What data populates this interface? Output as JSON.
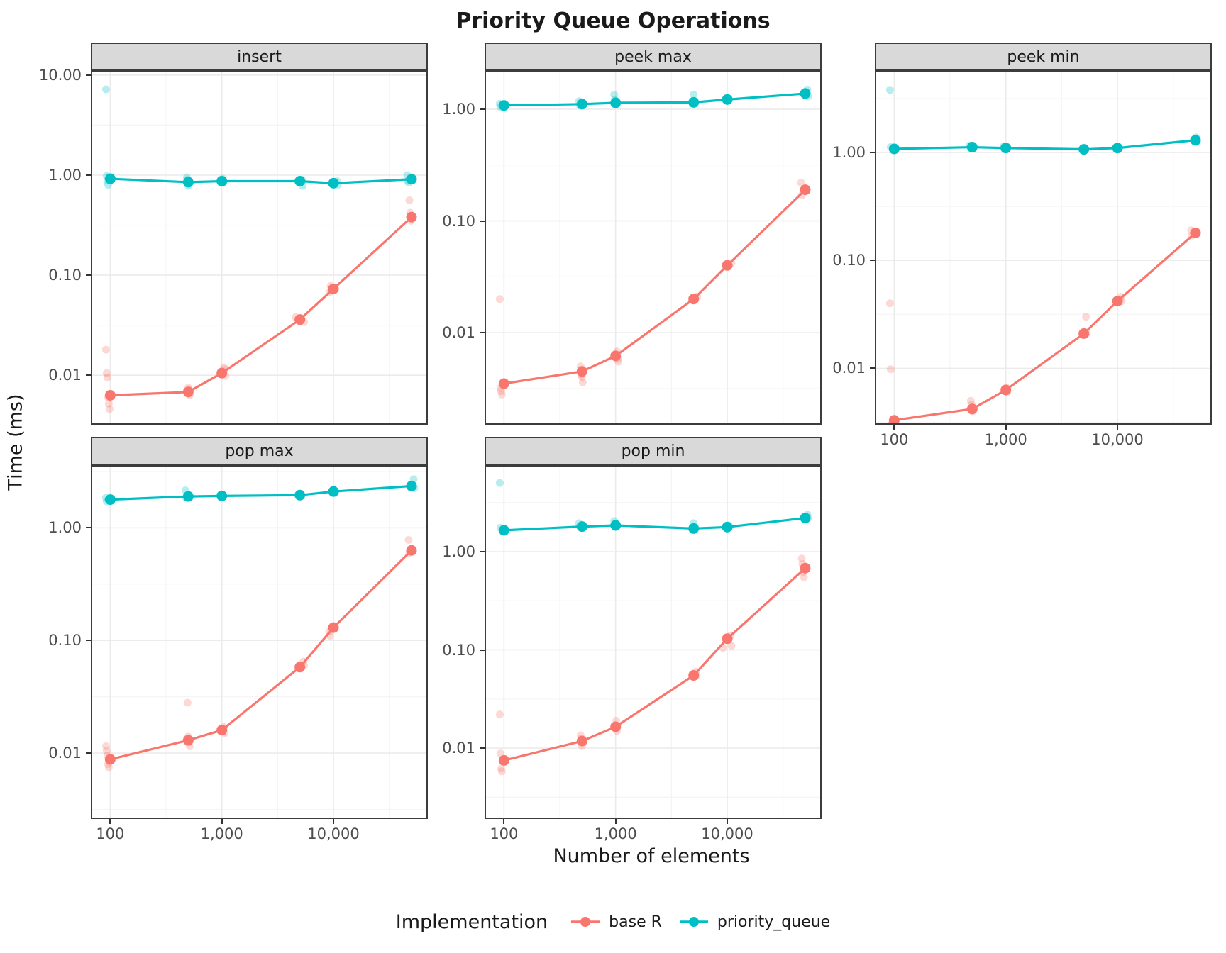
{
  "page": {
    "title": "Priority Queue Operations"
  },
  "colors": {
    "base_r": "#F8766D",
    "priority_queue": "#00BFC4",
    "panel_bg": "#FFFFFF",
    "strip_bg": "#D9D9D9",
    "panel_border": "#3C3C3C",
    "grid_major": "#EBEBEB",
    "grid_minor": "#F5F5F5",
    "tick_text": "#4D4D4D",
    "title_text": "#1A1A1A"
  },
  "chart_data": {
    "type": "line",
    "title": "Priority Queue Operations",
    "xlabel": "Number of elements",
    "ylabel": "Time (ms)",
    "x_scale": "log10",
    "y_scale": "log10",
    "grid": "on",
    "x": [
      100,
      500,
      1000,
      5000,
      10000,
      50000
    ],
    "xlim": [
      67,
      70000
    ],
    "x_ticks": {
      "values": [
        100,
        1000,
        10000
      ],
      "labels": [
        "100",
        "1,000",
        "10,000"
      ]
    },
    "x_minor": [
      316,
      3162,
      31623
    ],
    "legend": {
      "title": "Implementation",
      "position": "bottom",
      "entries": [
        {
          "label": "base R",
          "color": "#F8766D"
        },
        {
          "label": "priority_queue",
          "color": "#00BFC4"
        }
      ]
    },
    "facets": [
      {
        "label": "insert",
        "ylim": [
          0.0032,
          11.0
        ],
        "yticks": [
          0.01,
          0.1,
          1.0,
          10.0
        ],
        "ytick_labels": [
          "0.01",
          "0.10",
          "1.00",
          "10.00"
        ],
        "series": [
          {
            "name": "base R",
            "means": [
              0.0063,
              0.0068,
              0.0105,
              0.036,
              0.073,
              0.38
            ],
            "scatter": [
              [
                100,
                0.018
              ],
              [
                100,
                0.0105
              ],
              [
                100,
                0.0095
              ],
              [
                100,
                0.006
              ],
              [
                100,
                0.0052
              ],
              [
                100,
                0.0046
              ],
              [
                500,
                0.0075
              ],
              [
                500,
                0.0072
              ],
              [
                500,
                0.0063
              ],
              [
                1000,
                0.012
              ],
              [
                1000,
                0.0115
              ],
              [
                1000,
                0.0098
              ],
              [
                5000,
                0.034
              ],
              [
                5000,
                0.038
              ],
              [
                10000,
                0.068
              ],
              [
                10000,
                0.078
              ],
              [
                50000,
                0.56
              ],
              [
                50000,
                0.42
              ],
              [
                50000,
                0.35
              ]
            ]
          },
          {
            "name": "priority_queue",
            "means": [
              0.92,
              0.85,
              0.87,
              0.87,
              0.83,
              0.91
            ],
            "scatter": [
              [
                100,
                7.2
              ],
              [
                100,
                0.98
              ],
              [
                100,
                0.88
              ],
              [
                100,
                0.8
              ],
              [
                500,
                0.95
              ],
              [
                500,
                0.9
              ],
              [
                500,
                0.78
              ],
              [
                1000,
                0.92
              ],
              [
                1000,
                0.84
              ],
              [
                5000,
                0.9
              ],
              [
                5000,
                0.78
              ],
              [
                10000,
                0.87
              ],
              [
                10000,
                0.8
              ],
              [
                50000,
                1.0
              ],
              [
                50000,
                0.88
              ],
              [
                50000,
                0.84
              ]
            ]
          }
        ]
      },
      {
        "label": "peek max",
        "ylim": [
          0.0015,
          2.2
        ],
        "yticks": [
          0.01,
          0.1,
          1.0
        ],
        "ytick_labels": [
          "0.01",
          "0.10",
          "1.00"
        ],
        "series": [
          {
            "name": "base R",
            "means": [
              0.0035,
              0.0045,
              0.0062,
              0.02,
              0.04,
              0.19
            ],
            "scatter": [
              [
                100,
                0.02
              ],
              [
                100,
                0.0032
              ],
              [
                100,
                0.003
              ],
              [
                100,
                0.0028
              ],
              [
                500,
                0.005
              ],
              [
                500,
                0.0042
              ],
              [
                500,
                0.004
              ],
              [
                500,
                0.0036
              ],
              [
                1000,
                0.0068
              ],
              [
                1000,
                0.0058
              ],
              [
                1000,
                0.0055
              ],
              [
                5000,
                0.021
              ],
              [
                10000,
                0.042
              ],
              [
                50000,
                0.22
              ],
              [
                50000,
                0.17
              ]
            ]
          },
          {
            "name": "priority_queue",
            "means": [
              1.08,
              1.11,
              1.14,
              1.15,
              1.22,
              1.38
            ],
            "scatter": [
              [
                100,
                1.12
              ],
              [
                100,
                1.05
              ],
              [
                500,
                1.18
              ],
              [
                500,
                1.08
              ],
              [
                1000,
                1.35
              ],
              [
                1000,
                1.22
              ],
              [
                5000,
                1.35
              ],
              [
                5000,
                1.12
              ],
              [
                10000,
                1.25
              ],
              [
                50000,
                1.5
              ],
              [
                50000,
                1.3
              ]
            ]
          }
        ]
      },
      {
        "label": "peek min",
        "ylim": [
          0.003,
          5.7
        ],
        "yticks": [
          0.01,
          0.1,
          1.0
        ],
        "ytick_labels": [
          "0.01",
          "0.10",
          "1.00"
        ],
        "series": [
          {
            "name": "base R",
            "means": [
              0.0033,
              0.0042,
              0.0063,
              0.021,
              0.042,
              0.18
            ],
            "scatter": [
              [
                100,
                0.04
              ],
              [
                100,
                0.0098
              ],
              [
                100,
                0.003
              ],
              [
                100,
                0.0031
              ],
              [
                500,
                0.005
              ],
              [
                500,
                0.0046
              ],
              [
                500,
                0.004
              ],
              [
                1000,
                0.0066
              ],
              [
                1000,
                0.006
              ],
              [
                5000,
                0.03
              ],
              [
                5000,
                0.021
              ],
              [
                10000,
                0.046
              ],
              [
                10000,
                0.042
              ],
              [
                50000,
                0.19
              ],
              [
                50000,
                0.17
              ]
            ]
          },
          {
            "name": "priority_queue",
            "means": [
              1.08,
              1.12,
              1.1,
              1.07,
              1.1,
              1.3
            ],
            "scatter": [
              [
                100,
                3.8
              ],
              [
                100,
                1.12
              ],
              [
                500,
                1.16
              ],
              [
                1000,
                1.14
              ],
              [
                1000,
                1.08
              ],
              [
                5000,
                1.1
              ],
              [
                10000,
                1.12
              ],
              [
                50000,
                1.38
              ],
              [
                50000,
                1.25
              ]
            ]
          }
        ]
      },
      {
        "label": "pop max",
        "ylim": [
          0.0026,
          3.6
        ],
        "yticks": [
          0.01,
          0.1,
          1.0
        ],
        "ytick_labels": [
          "0.01",
          "0.10",
          "1.00"
        ],
        "series": [
          {
            "name": "base R",
            "means": [
              0.0088,
              0.013,
              0.016,
              0.058,
              0.13,
              0.63
            ],
            "scatter": [
              [
                100,
                0.0115
              ],
              [
                100,
                0.0105
              ],
              [
                100,
                0.0095
              ],
              [
                100,
                0.008
              ],
              [
                100,
                0.0075
              ],
              [
                500,
                0.028
              ],
              [
                500,
                0.014
              ],
              [
                500,
                0.0125
              ],
              [
                500,
                0.0115
              ],
              [
                1000,
                0.017
              ],
              [
                1000,
                0.015
              ],
              [
                5000,
                0.065
              ],
              [
                5000,
                0.06
              ],
              [
                10000,
                0.12
              ],
              [
                10000,
                0.11
              ],
              [
                50000,
                0.78
              ],
              [
                50000,
                0.6
              ]
            ]
          },
          {
            "name": "priority_queue",
            "means": [
              1.78,
              1.9,
              1.92,
              1.95,
              2.1,
              2.35
            ],
            "scatter": [
              [
                100,
                1.85
              ],
              [
                100,
                1.72
              ],
              [
                500,
                2.15
              ],
              [
                500,
                1.85
              ],
              [
                1000,
                1.95
              ],
              [
                1000,
                1.88
              ],
              [
                5000,
                2.0
              ],
              [
                10000,
                2.15
              ],
              [
                10000,
                2.05
              ],
              [
                50000,
                2.7
              ],
              [
                50000,
                2.25
              ]
            ]
          }
        ]
      },
      {
        "label": "pop min",
        "ylim": [
          0.0019,
          7.6
        ],
        "yticks": [
          0.01,
          0.1,
          1.0
        ],
        "ytick_labels": [
          "0.01",
          "0.10",
          "1.00"
        ],
        "series": [
          {
            "name": "base R",
            "means": [
              0.0075,
              0.0118,
              0.0165,
              0.055,
              0.13,
              0.68
            ],
            "scatter": [
              [
                100,
                0.022
              ],
              [
                100,
                0.0088
              ],
              [
                100,
                0.0062
              ],
              [
                100,
                0.0058
              ],
              [
                500,
                0.0135
              ],
              [
                500,
                0.0125
              ],
              [
                500,
                0.0105
              ],
              [
                1000,
                0.019
              ],
              [
                1000,
                0.015
              ],
              [
                5000,
                0.06
              ],
              [
                5000,
                0.055
              ],
              [
                10000,
                0.14
              ],
              [
                10000,
                0.11
              ],
              [
                10000,
                0.105
              ],
              [
                50000,
                0.85
              ],
              [
                50000,
                0.75
              ],
              [
                50000,
                0.62
              ],
              [
                50000,
                0.55
              ]
            ]
          },
          {
            "name": "priority_queue",
            "means": [
              1.65,
              1.8,
              1.85,
              1.72,
              1.78,
              2.2
            ],
            "scatter": [
              [
                100,
                5.0
              ],
              [
                100,
                1.75
              ],
              [
                500,
                1.95
              ],
              [
                500,
                1.8
              ],
              [
                1000,
                2.05
              ],
              [
                1000,
                1.92
              ],
              [
                5000,
                1.95
              ],
              [
                5000,
                1.72
              ],
              [
                10000,
                1.85
              ],
              [
                50000,
                2.4
              ],
              [
                50000,
                2.2
              ]
            ]
          }
        ]
      }
    ]
  }
}
